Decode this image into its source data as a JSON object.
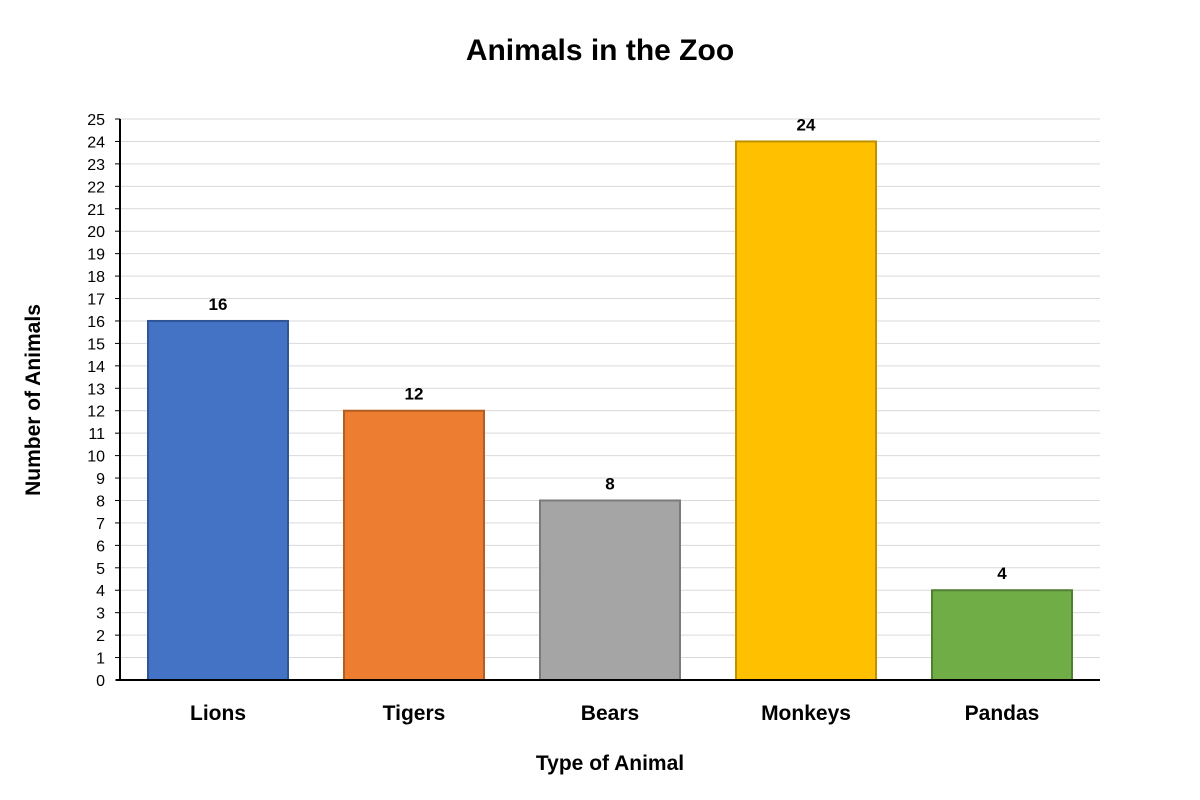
{
  "chart_data": {
    "type": "bar",
    "title": "Animals in the Zoo",
    "xlabel": "Type of Animal",
    "ylabel": "Number of Animals",
    "categories": [
      "Lions",
      "Tigers",
      "Bears",
      "Monkeys",
      "Pandas"
    ],
    "values": [
      16,
      12,
      8,
      24,
      4
    ],
    "colors": [
      "#4472c4",
      "#ed7d31",
      "#a5a5a5",
      "#ffc000",
      "#70ad47"
    ],
    "border_colors": [
      "#2f5597",
      "#b25e22",
      "#7b7b7b",
      "#bf9000",
      "#507e32"
    ],
    "ylim": [
      0,
      25
    ],
    "ytick_step": 1,
    "grid": true,
    "data_labels": true,
    "legend": "none"
  }
}
